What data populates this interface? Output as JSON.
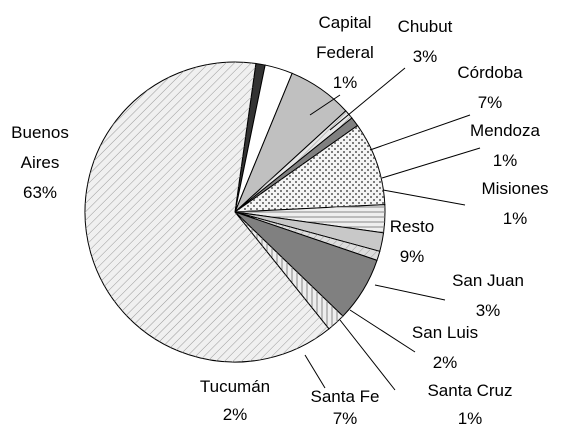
{
  "chart_data": {
    "type": "pie",
    "categories": [
      "Capital Federal",
      "Chubut",
      "Córdoba",
      "Mendoza",
      "Misiones",
      "Resto",
      "San Juan",
      "San Luis",
      "Santa Cruz",
      "Santa Fe",
      "Tucumán",
      "Buenos Aires"
    ],
    "values": [
      1,
      3,
      7,
      1,
      1,
      9,
      3,
      2,
      1,
      7,
      2,
      63
    ],
    "value_labels": [
      "1%",
      "3%",
      "7%",
      "1%",
      "1%",
      "9%",
      "3%",
      "2%",
      "1%",
      "7%",
      "2%",
      "63%"
    ],
    "colors": [
      "#333333",
      "#ffffff",
      "#c0c0c0",
      "#e8e8e8",
      "#808080",
      "#f4f4f4",
      "#eeeeee",
      "#c8c8c8",
      "#dddddd",
      "#808080",
      "#eeeeee",
      "#f0f0f0"
    ]
  }
}
